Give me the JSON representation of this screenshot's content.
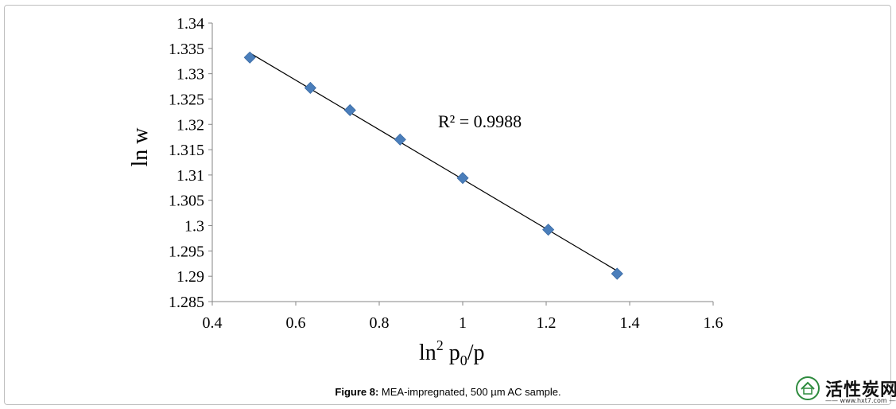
{
  "chart_data": {
    "type": "scatter",
    "xlabel_base": "ln",
    "xlabel_sup": "2",
    "xlabel_main": " p",
    "xlabel_sub": "0",
    "xlabel_tail": "/p",
    "ylabel": "ln w",
    "xlim": [
      0.4,
      1.6
    ],
    "ylim": [
      1.285,
      1.34
    ],
    "x_ticks": [
      "0.4",
      "0.6",
      "0.8",
      "1",
      "1.2",
      "1.4",
      "1.6"
    ],
    "y_ticks": [
      "1.34",
      "1.335",
      "1.33",
      "1.325",
      "1.32",
      "1.315",
      "1.31",
      "1.305",
      "1.3",
      "1.295",
      "1.29",
      "1.285"
    ],
    "grid": false,
    "legend": "none",
    "marker": "diamond",
    "marker_color": "#4a7ebb",
    "series": [
      {
        "points": [
          {
            "x": 0.49,
            "y": 1.3332
          },
          {
            "x": 0.635,
            "y": 1.3272
          },
          {
            "x": 0.73,
            "y": 1.3228
          },
          {
            "x": 0.85,
            "y": 1.317
          },
          {
            "x": 1.0,
            "y": 1.3094
          },
          {
            "x": 1.205,
            "y": 1.2992
          },
          {
            "x": 1.37,
            "y": 1.2905
          }
        ]
      }
    ],
    "trendline": {
      "type": "linear",
      "color": "#000000",
      "x_start": 0.49,
      "x_end": 1.37
    },
    "annotation": "R² = 0.9988"
  },
  "caption": {
    "label": "Figure 8:",
    "text": " MEA-impregnated, 500 µm AC sample."
  },
  "watermark": {
    "text": "活性炭网",
    "url": "—— www.hxt7.com ——"
  }
}
